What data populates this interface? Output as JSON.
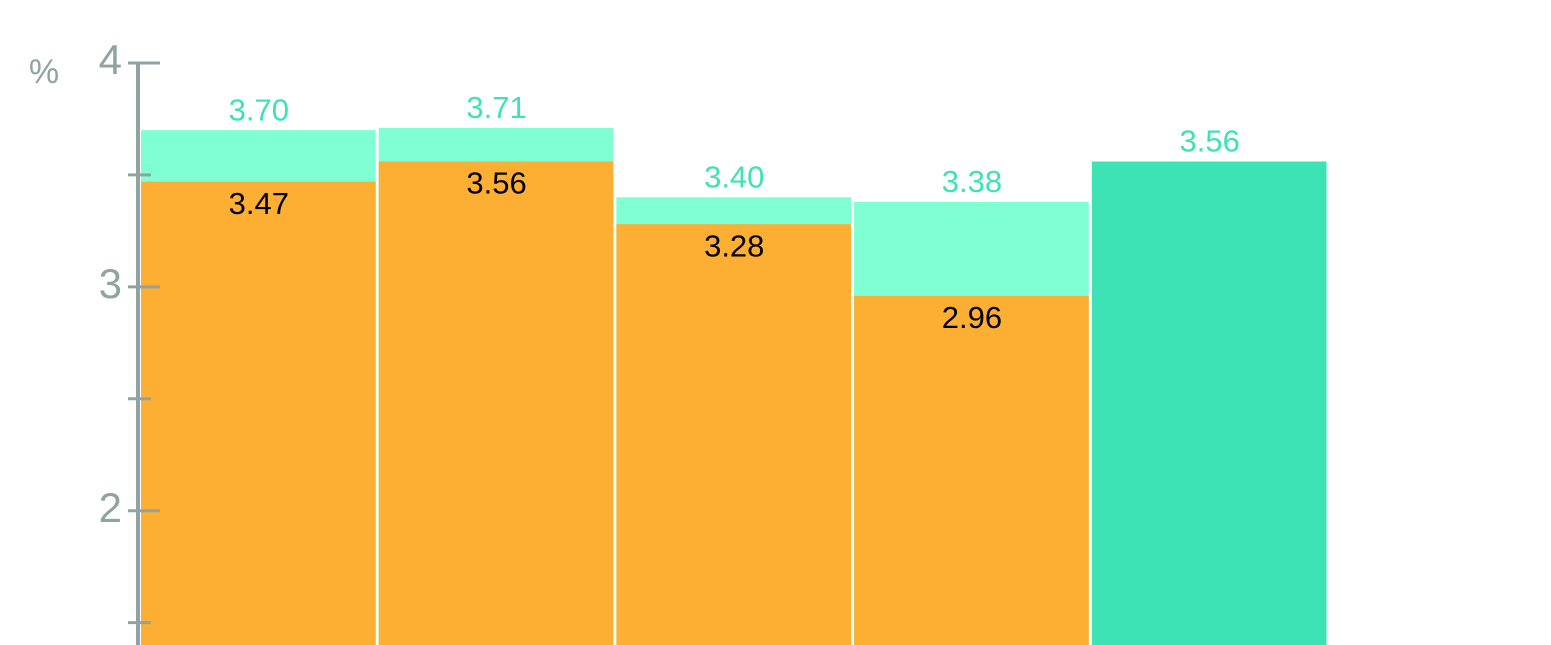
{
  "chart_data": {
    "type": "bar",
    "overlap": true,
    "y_label": "%",
    "categories": [
      null,
      null,
      null,
      null,
      null
    ],
    "series": [
      {
        "colors": [
          "#80ffd4",
          "#80ffd4",
          "#80ffd4",
          "#80ffd4",
          "#3de3b5"
        ],
        "label_color": "#3de3b5",
        "values": [
          3.7,
          3.71,
          3.4,
          3.38,
          3.56
        ],
        "value_labels": [
          "3.70",
          "3.71",
          "3.40",
          "3.38",
          "3.56"
        ]
      },
      {
        "color": "#fcaf32",
        "label_color": "#000000",
        "values": [
          3.47,
          3.56,
          3.28,
          2.96,
          null
        ],
        "value_labels": [
          "3.47",
          "3.56",
          "3.28",
          "2.96",
          null
        ]
      }
    ],
    "ylim": [
      1.4,
      4
    ],
    "yticks": [
      2,
      3,
      4
    ],
    "yminor_ticks": [
      1.5,
      2.5,
      3.5
    ],
    "axis_color": "#8fa3a3",
    "grid": false
  }
}
